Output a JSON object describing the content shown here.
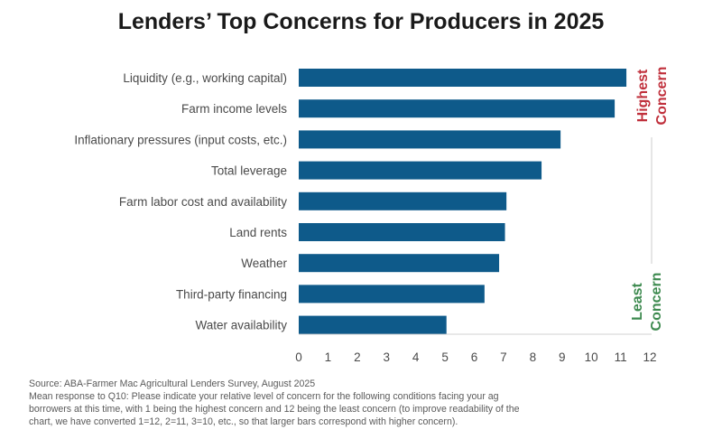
{
  "title": "Lenders’ Top Concerns for Producers in 2025",
  "chart_data": {
    "type": "bar",
    "orientation": "horizontal",
    "title": "Lenders’ Top Concerns for Producers in 2025",
    "categories": [
      "Liquidity (e.g., working capital)",
      "Farm income levels",
      "Inflationary pressures (input costs, etc.)",
      "Total leverage",
      "Farm labor cost and availability",
      "Land rents",
      "Weather",
      "Third-party financing",
      "Water availability"
    ],
    "values": [
      11.2,
      10.8,
      8.95,
      8.3,
      7.1,
      7.05,
      6.85,
      6.35,
      5.05
    ],
    "xlim": [
      0,
      12
    ],
    "xticks": [
      "0",
      "1",
      "2",
      "3",
      "4",
      "5",
      "6",
      "7",
      "8",
      "9",
      "10",
      "11",
      "12"
    ],
    "bar_color": "#0e5a8a",
    "annotations": {
      "high": [
        "Highest",
        "Concern"
      ],
      "high_color": "#c0303c",
      "low": [
        "Least",
        "Concern"
      ],
      "low_color": "#3d8a4f"
    }
  },
  "footer": {
    "source": "Source: ABA-Farmer Mac Agricultural Lenders Survey, August 2025",
    "note_lines": [
      "Mean response to Q10: Please indicate your relative level of concern for the following conditions facing your ag",
      "borrowers at this time, with 1 being the highest concern and 12 being the least concern (to improve readability of the",
      "chart, we have converted 1=12, 2=11, 3=10, etc., so that larger bars correspond with higher concern)."
    ]
  }
}
